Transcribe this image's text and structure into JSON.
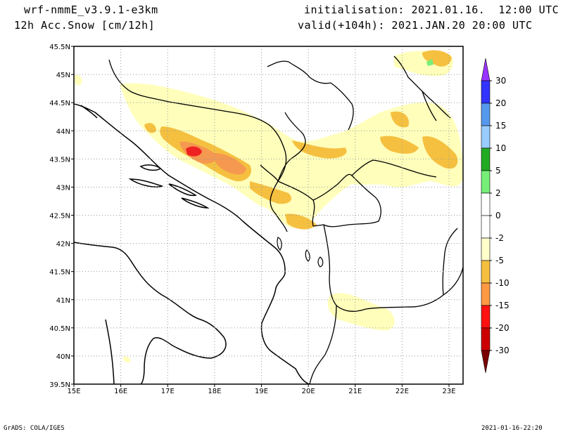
{
  "header": {
    "model": "wrf-nmmE_v3.9.1-e3km",
    "field": "12h Acc.Snow [cm/12h]",
    "init": "initialisation: 2021.01.16.  12:00 UTC",
    "valid": "valid(+104h): 2021.JAN.20 20:00 UTC"
  },
  "footer": {
    "credit": "GrADS: COLA/IGES",
    "timestamp": "2021-01-16-22:20"
  },
  "axes": {
    "lon_labels": [
      "15E",
      "16E",
      "17E",
      "18E",
      "19E",
      "20E",
      "21E",
      "22E",
      "23E"
    ],
    "lat_labels": [
      "45.5N",
      "45N",
      "44.5N",
      "44N",
      "43.5N",
      "43N",
      "42.5N",
      "42N",
      "41.5N",
      "41N",
      "40.5N",
      "40N",
      "39.5N"
    ],
    "lon_range": [
      15,
      23.3
    ],
    "lat_range": [
      39.5,
      45.5
    ]
  },
  "colorbar": {
    "labels": [
      "30",
      "20",
      "15",
      "10",
      "5",
      "2",
      "0",
      "-2",
      "-5",
      "-10",
      "-15",
      "-20",
      "-30"
    ],
    "colors": [
      "#9933ff",
      "#3333ff",
      "#5599ee",
      "#99ccff",
      "#22aa22",
      "#77ee77",
      "#ffffff",
      "#ffffff",
      "#ffffcc",
      "#f5c040",
      "#ff9944",
      "#ff1111",
      "#cc0000",
      "#990000",
      "#7a0000"
    ]
  },
  "colors": {
    "light_yellow": "#ffffbb",
    "amber": "#f5c040",
    "orange": "#f59850",
    "red": "#ee2222",
    "green": "#77ee77"
  }
}
